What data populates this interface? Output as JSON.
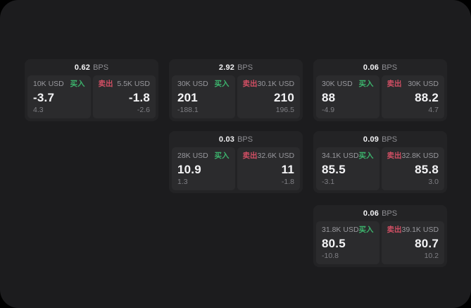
{
  "panel": {
    "page_background": "#000000",
    "panel_background": "#1c1c1e"
  },
  "colors": {
    "buy_green": "#3cb36c",
    "sell_red": "#d14f64",
    "card": "#232325",
    "cell": "#2b2b2d"
  },
  "labels": {
    "bps_unit": "BPS",
    "buy": "买入",
    "sell": "卖出"
  },
  "cards": [
    {
      "row": 1,
      "col": 1,
      "bps": "0.62",
      "buy_amount": "10K USD",
      "buy_price": "-3.7",
      "buy_change": "4.3",
      "sell_amount": "5.5K USD",
      "sell_price": "-1.8",
      "sell_change": "-2.6"
    },
    {
      "row": 1,
      "col": 2,
      "bps": "2.92",
      "buy_amount": "30K USD",
      "buy_price": "201",
      "buy_change": "-188.1",
      "sell_amount": "30.1K USD",
      "sell_price": "210",
      "sell_change": "196.5"
    },
    {
      "row": 1,
      "col": 3,
      "bps": "0.06",
      "buy_amount": "30K USD",
      "buy_price": "88",
      "buy_change": "-4.9",
      "sell_amount": "30K USD",
      "sell_price": "88.2",
      "sell_change": "4.7"
    },
    {
      "row": 2,
      "col": 2,
      "bps": "0.03",
      "buy_amount": "28K USD",
      "buy_price": "10.9",
      "buy_change": "1.3",
      "sell_amount": "32.6K USD",
      "sell_price": "11",
      "sell_change": "-1.8"
    },
    {
      "row": 2,
      "col": 3,
      "bps": "0.09",
      "buy_amount": "34.1K USD",
      "buy_price": "85.5",
      "buy_change": "-3.1",
      "sell_amount": "32.8K USD",
      "sell_price": "85.8",
      "sell_change": "3.0"
    },
    {
      "row": 3,
      "col": 3,
      "bps": "0.06",
      "buy_amount": "31.8K USD",
      "buy_price": "80.5",
      "buy_change": "-10.8",
      "sell_amount": "39.1K USD",
      "sell_price": "80.7",
      "sell_change": "10.2"
    }
  ]
}
